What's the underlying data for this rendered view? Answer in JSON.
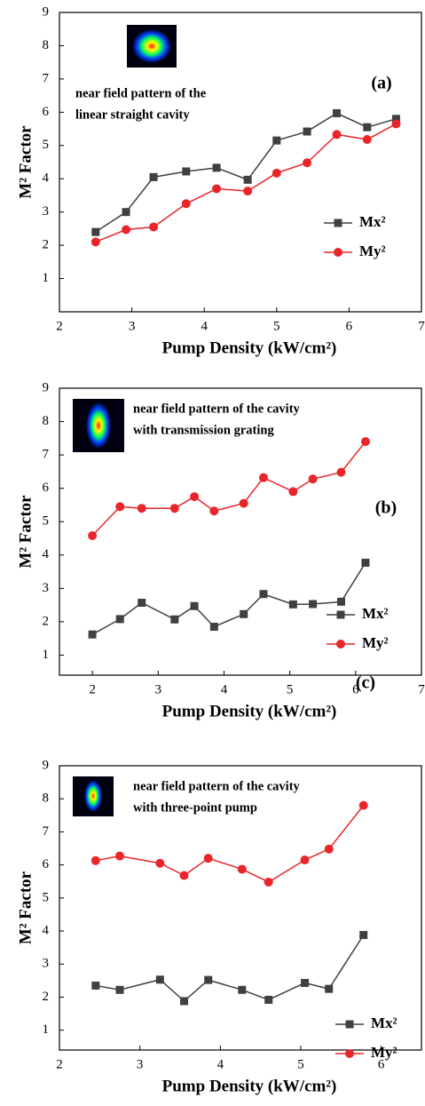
{
  "chart_data": [
    {
      "type": "line",
      "panel_label": "(a)",
      "annotation": [
        "near field pattern of the",
        "linear straight cavity"
      ],
      "x_label": "Pump Density (kW/cm²)",
      "y_label": "M² Factor",
      "xlim": [
        2,
        7
      ],
      "xticks": [
        2,
        3,
        4,
        5,
        6,
        7
      ],
      "ylim": [
        0,
        9
      ],
      "yticks": [
        1,
        2,
        3,
        4,
        5,
        6,
        7,
        8,
        9
      ],
      "legend": "lower right",
      "x": [
        2.5,
        2.92,
        3.3,
        3.75,
        4.17,
        4.6,
        5.0,
        5.42,
        5.83,
        6.25,
        6.65
      ],
      "series": [
        {
          "name": "Mx²",
          "color": "#404040",
          "marker": "square",
          "values": [
            2.4,
            3.0,
            4.05,
            4.22,
            4.33,
            3.97,
            5.15,
            5.42,
            5.97,
            5.55,
            5.8
          ]
        },
        {
          "name": "My²",
          "color": "#e8262a",
          "marker": "circle",
          "values": [
            2.1,
            2.47,
            2.55,
            3.25,
            3.7,
            3.63,
            4.17,
            4.48,
            5.33,
            5.18,
            5.65
          ]
        }
      ]
    },
    {
      "type": "line",
      "panel_label": "(b)",
      "annotation": [
        "near field pattern of the cavity",
        "with transmission grating"
      ],
      "x_label": "Pump Density (kW/cm²)",
      "y_label": "M² Factor",
      "xlim": [
        1.5,
        7
      ],
      "xticks": [
        2,
        3,
        4,
        5,
        6,
        7
      ],
      "ylim": [
        0.4,
        9
      ],
      "yticks": [
        1,
        2,
        3,
        4,
        5,
        6,
        7,
        8,
        9
      ],
      "legend": "lower right",
      "x": [
        2.0,
        2.42,
        2.75,
        3.25,
        3.55,
        3.85,
        4.3,
        4.6,
        5.05,
        5.35,
        5.78,
        6.15
      ],
      "series": [
        {
          "name": "Mx²",
          "color": "#404040",
          "marker": "square",
          "values": [
            1.62,
            2.08,
            2.57,
            2.07,
            2.47,
            1.85,
            2.23,
            2.83,
            2.52,
            2.53,
            2.6,
            3.77
          ]
        },
        {
          "name": "My²",
          "color": "#e8262a",
          "marker": "circle",
          "values": [
            4.58,
            5.45,
            5.4,
            5.4,
            5.75,
            5.32,
            5.55,
            6.32,
            5.9,
            6.28,
            6.48,
            7.4
          ]
        }
      ]
    },
    {
      "type": "line",
      "panel_label": "(c)",
      "annotation": [
        "near field pattern of the cavity",
        "with three-point pump"
      ],
      "x_label": "Pump Density (kW/cm²)",
      "y_label": "M² Factor",
      "xlim": [
        2,
        6.5
      ],
      "xticks": [
        2,
        3,
        4,
        5,
        6
      ],
      "ylim": [
        0.4,
        9
      ],
      "yticks": [
        1,
        2,
        3,
        4,
        5,
        6,
        7,
        8,
        9
      ],
      "legend": "lower right",
      "x": [
        2.45,
        2.75,
        3.25,
        3.55,
        3.85,
        4.27,
        4.6,
        5.05,
        5.35,
        5.78
      ],
      "series": [
        {
          "name": "Mx²",
          "color": "#404040",
          "marker": "square",
          "values": [
            2.35,
            2.22,
            2.53,
            1.88,
            2.52,
            2.22,
            1.92,
            2.43,
            2.25,
            3.88
          ]
        },
        {
          "name": "My²",
          "color": "#e8262a",
          "marker": "circle",
          "values": [
            6.13,
            6.27,
            6.05,
            5.68,
            6.2,
            5.87,
            5.48,
            6.15,
            6.48,
            7.8
          ]
        }
      ]
    }
  ]
}
